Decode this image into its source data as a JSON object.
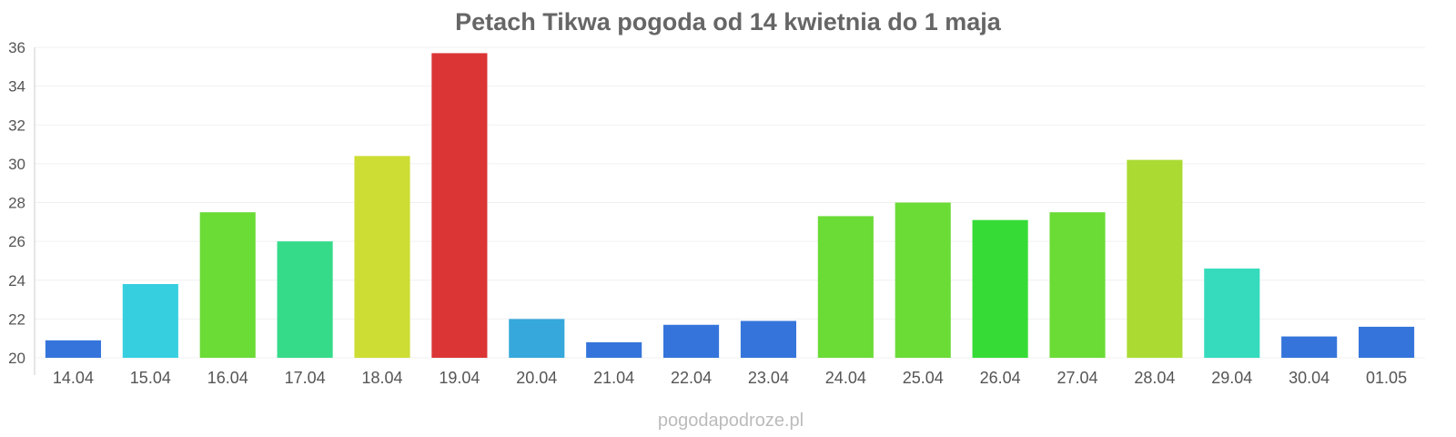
{
  "chart_data": {
    "type": "bar",
    "title": "Petach Tikwa pogoda od 14 kwietnia do 1 maja",
    "categories": [
      "14.04",
      "15.04",
      "16.04",
      "17.04",
      "18.04",
      "19.04",
      "20.04",
      "21.04",
      "22.04",
      "23.04",
      "24.04",
      "25.04",
      "26.04",
      "27.04",
      "28.04",
      "29.04",
      "30.04",
      "01.05"
    ],
    "values": [
      20.9,
      23.8,
      27.5,
      26.0,
      30.4,
      35.7,
      22.0,
      20.8,
      21.7,
      21.9,
      27.3,
      28.0,
      27.1,
      27.5,
      30.2,
      24.6,
      21.1,
      21.6
    ],
    "colors": [
      "#3575db",
      "#36cfe0",
      "#6bdb36",
      "#36db8a",
      "#cddd33",
      "#db3535",
      "#36a8db",
      "#3575db",
      "#3575db",
      "#3575db",
      "#6bdb36",
      "#6bdb36",
      "#36db36",
      "#6bdb36",
      "#abdb33",
      "#36dbbd",
      "#3575db",
      "#3575db"
    ],
    "ylim": [
      20,
      36
    ],
    "yticks": [
      "20",
      "22",
      "24",
      "26",
      "28",
      "30",
      "32",
      "34",
      "36"
    ],
    "grid": true,
    "xlabel": "",
    "ylabel": ""
  },
  "footer": "pogodapodroze.pl"
}
